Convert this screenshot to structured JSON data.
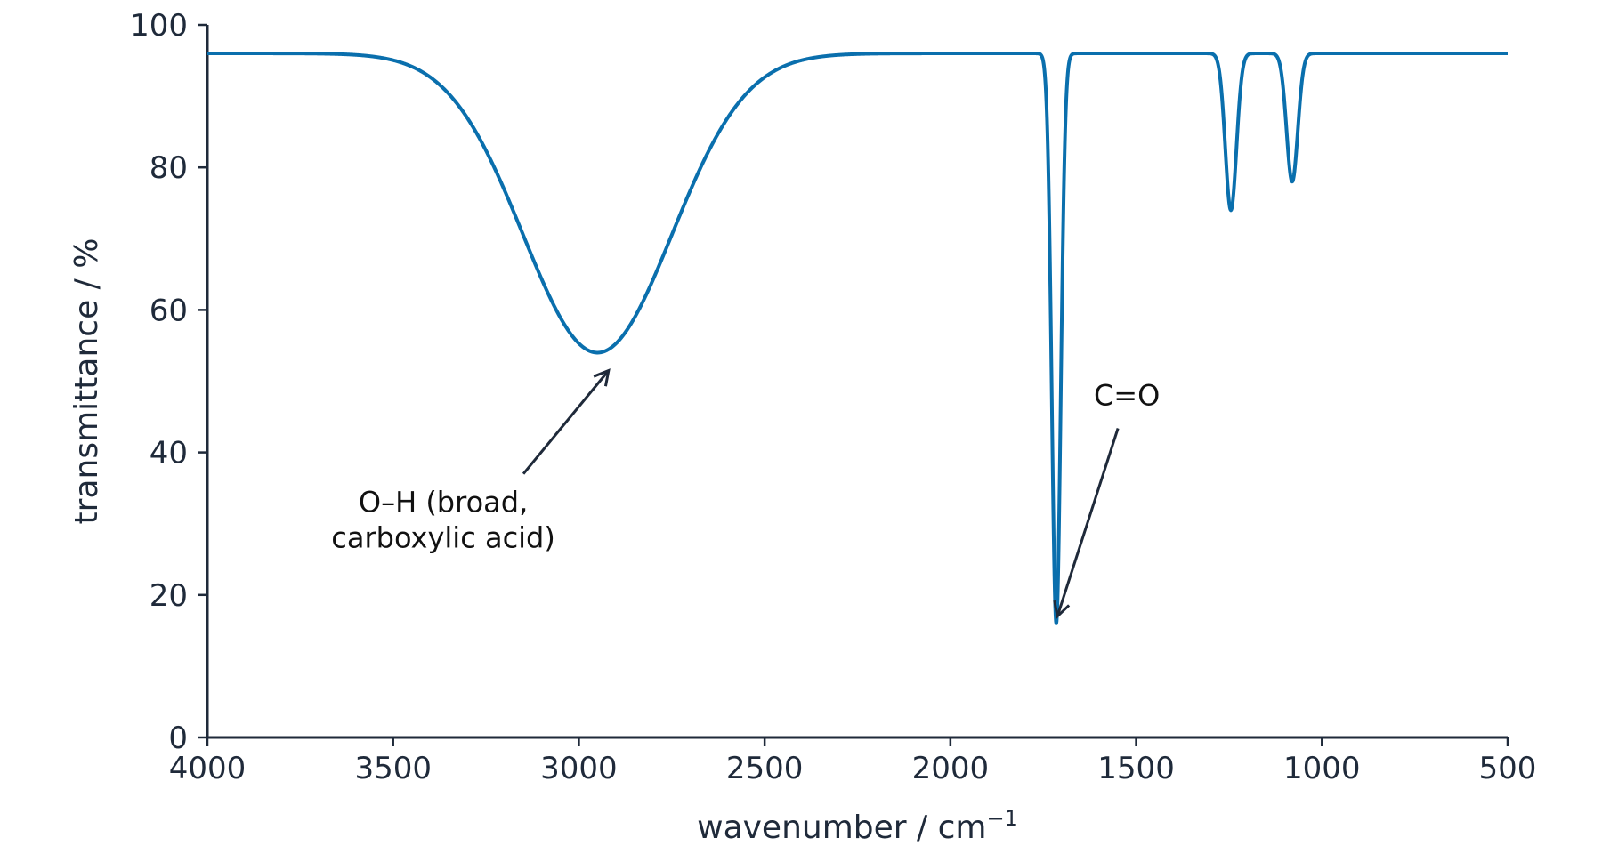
{
  "chart_data": {
    "type": "line",
    "xlabel": "wavenumber / cm",
    "xlabel_superscript": "−1",
    "ylabel": "transmittance / %",
    "xlim": [
      4000,
      500
    ],
    "ylim": [
      0,
      100
    ],
    "x_reversed": true,
    "grid": false,
    "x_ticks": [
      4000,
      3500,
      3000,
      2500,
      2000,
      1500,
      1000,
      500
    ],
    "y_ticks": [
      0,
      20,
      40,
      60,
      80,
      100
    ],
    "colors": {
      "line": "#0a6fad",
      "axis": "#1f2a3a"
    },
    "series": [
      {
        "baseline": 96,
        "bands": [
          {
            "center": 2950,
            "min_transmittance": 54,
            "width": 200
          },
          {
            "center": 1715,
            "min_transmittance": 16,
            "width": 12
          },
          {
            "center": 1245,
            "min_transmittance": 74,
            "width": 15
          },
          {
            "center": 1080,
            "min_transmittance": 78,
            "width": 15
          }
        ]
      }
    ],
    "annotations": [
      {
        "lines": [
          "O–H (broad,",
          "carboxylic acid)"
        ],
        "text_x": 3365,
        "text_y": 30.5,
        "point_x": 2920,
        "point_y": 51.5
      },
      {
        "lines": [
          "C=O"
        ],
        "text_x": 1525,
        "text_y": 48,
        "point_x": 1712,
        "point_y": 17
      }
    ]
  }
}
